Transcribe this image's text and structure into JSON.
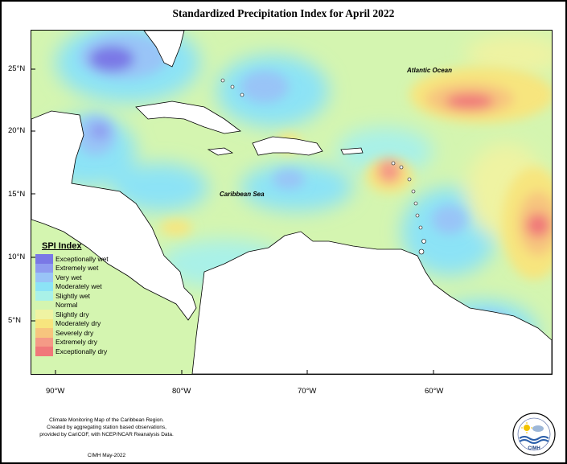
{
  "title": "Standardized Precipitation Index for April 2022",
  "map_labels": {
    "atlantic": "Atlantic Ocean",
    "caribbean": "Caribbean Sea"
  },
  "latitude_labels": [
    "25°N",
    "20°N",
    "15°N",
    "10°N",
    "5°N"
  ],
  "longitude_labels": [
    "90°W",
    "80°W",
    "70°W",
    "60°W"
  ],
  "legend": {
    "title": "SPI Index",
    "items": [
      {
        "label": "Exceptionally wet",
        "color": "#7a78e6"
      },
      {
        "label": "Extremely wet",
        "color": "#8f9cf0"
      },
      {
        "label": "Very wet",
        "color": "#99c4f7"
      },
      {
        "label": "Moderately wet",
        "color": "#8ce3f6"
      },
      {
        "label": "Slightly wet",
        "color": "#a9f1e8"
      },
      {
        "label": "Normal",
        "color": "#d4f5b0"
      },
      {
        "label": "Slightly dry",
        "color": "#eff3a2"
      },
      {
        "label": "Moderately dry",
        "color": "#f7e57e"
      },
      {
        "label": "Severely dry",
        "color": "#f7c57e"
      },
      {
        "label": "Extremely dry",
        "color": "#f59a86"
      },
      {
        "label": "Exceptionally dry",
        "color": "#f0787a"
      }
    ]
  },
  "credits": {
    "line1": "Climate Monitoring Map of the Caribbean Region.",
    "line2": "Created by aggregating station based observations,",
    "line3": "provided by CariCOF, with NCEP/NCAR Reanalysis Data.",
    "stamp": "CIMH May-2022"
  },
  "logo": {
    "text": "CIMH",
    "icon": "cimh-logo-icon"
  }
}
